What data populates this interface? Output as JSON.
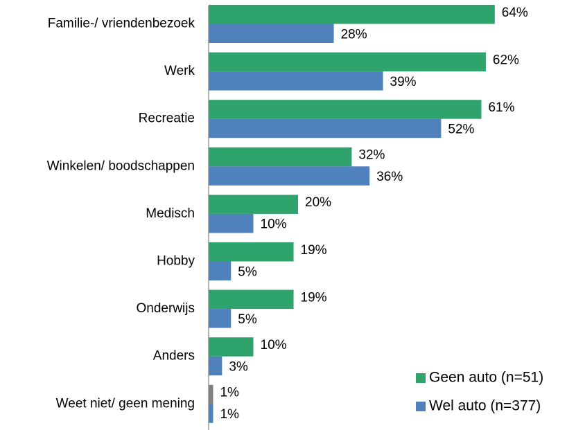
{
  "chart_data": {
    "type": "barh",
    "categories": [
      "Familie-/ vriendenbezoek",
      "Werk",
      "Recreatie",
      "Winkelen/ boodschappen",
      "Medisch",
      "Hobby",
      "Onderwijs",
      "Anders",
      "Weet niet/ geen mening"
    ],
    "xlim": [
      0,
      80
    ],
    "legend": "bottom-right",
    "series": [
      {
        "name": "Geen auto (n=51)",
        "color": "#2ea36b",
        "point_colors": [
          "#2ea36b",
          "#2ea36b",
          "#2ea36b",
          "#2ea36b",
          "#2ea36b",
          "#2ea36b",
          "#2ea36b",
          "#2ea36b",
          "#808080"
        ],
        "values": [
          64,
          62,
          61,
          32,
          20,
          19,
          19,
          10,
          1
        ],
        "value_labels": [
          "64%",
          "62%",
          "61%",
          "32%",
          "20%",
          "19%",
          "19%",
          "10%",
          "1%"
        ]
      },
      {
        "name": "Wel auto (n=377)",
        "color": "#4f81bd",
        "values": [
          28,
          39,
          52,
          36,
          10,
          5,
          5,
          3,
          1
        ],
        "value_labels": [
          "28%",
          "39%",
          "52%",
          "36%",
          "10%",
          "5%",
          "5%",
          "3%",
          "1%"
        ]
      }
    ]
  }
}
